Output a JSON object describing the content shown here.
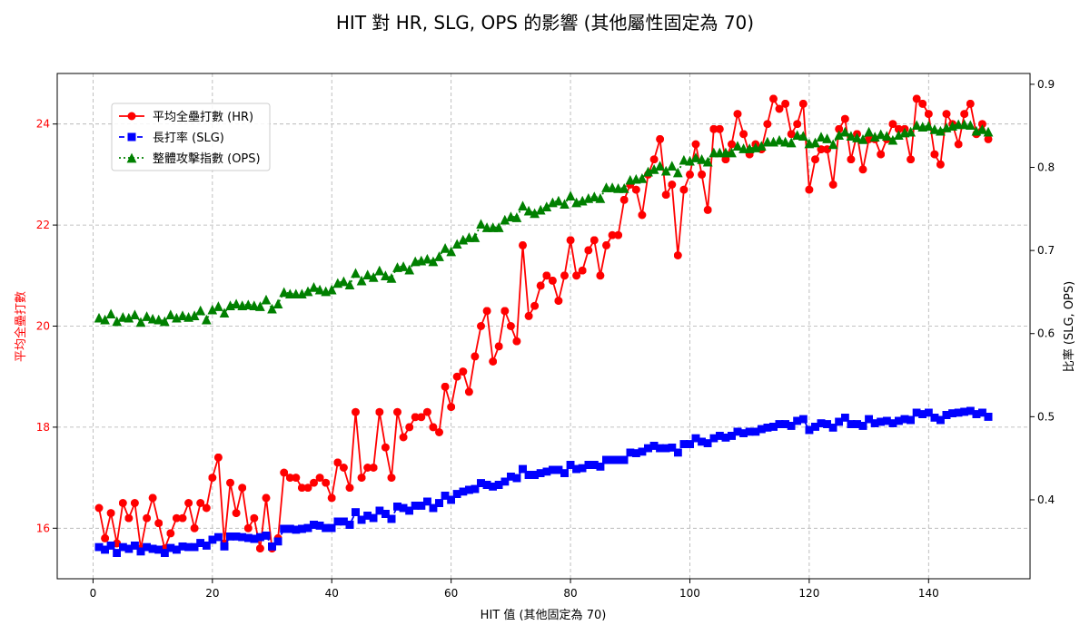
{
  "chart_data": {
    "type": "line",
    "title": "HIT 對 HR, SLG, OPS 的影響 (其他屬性固定為 70)",
    "xlabel": "HIT 值 (其他固定為 70)",
    "ylabel_left": "平均全壘打數",
    "ylabel_right": "比率 (SLG, OPS)",
    "xlim": [
      -6,
      157
    ],
    "ylim_left": [
      15.0,
      25.0
    ],
    "ylim_right": [
      0.305,
      0.913
    ],
    "x_ticks": [
      0,
      20,
      40,
      60,
      80,
      100,
      120,
      140
    ],
    "y_ticks_left": [
      16,
      18,
      20,
      22,
      24
    ],
    "y_ticks_right": [
      0.4,
      0.5,
      0.6,
      0.7,
      0.8,
      0.9
    ],
    "grid": true,
    "legend_position": "upper-left",
    "colors": {
      "hr": "#ff0000",
      "slg": "#0000ff",
      "ops": "#008000"
    },
    "x": [
      1,
      2,
      3,
      4,
      5,
      6,
      7,
      8,
      9,
      10,
      11,
      12,
      13,
      14,
      15,
      16,
      17,
      18,
      19,
      20,
      21,
      22,
      23,
      24,
      25,
      26,
      27,
      28,
      29,
      30,
      31,
      32,
      33,
      34,
      35,
      36,
      37,
      38,
      39,
      40,
      41,
      42,
      43,
      44,
      45,
      46,
      47,
      48,
      49,
      50,
      51,
      52,
      53,
      54,
      55,
      56,
      57,
      58,
      59,
      60,
      61,
      62,
      63,
      64,
      65,
      66,
      67,
      68,
      69,
      70,
      71,
      72,
      73,
      74,
      75,
      76,
      77,
      78,
      79,
      80,
      81,
      82,
      83,
      84,
      85,
      86,
      87,
      88,
      89,
      90,
      91,
      92,
      93,
      94,
      95,
      96,
      97,
      98,
      99,
      100,
      101,
      102,
      103,
      104,
      105,
      106,
      107,
      108,
      109,
      110,
      111,
      112,
      113,
      114,
      115,
      116,
      117,
      118,
      119,
      120,
      121,
      122,
      123,
      124,
      125,
      126,
      127,
      128,
      129,
      130,
      131,
      132,
      133,
      134,
      135,
      136,
      137,
      138,
      139,
      140,
      141,
      142,
      143,
      144,
      145,
      146,
      147,
      148,
      149,
      150
    ],
    "series": [
      {
        "name": "平均全壘打數 (HR)",
        "axis": "left",
        "style": "solid",
        "marker": "circle",
        "color": "#ff0000",
        "values": [
          16.4,
          15.8,
          16.3,
          15.7,
          16.5,
          16.2,
          16.5,
          15.6,
          16.2,
          16.6,
          16.1,
          15.6,
          15.9,
          16.2,
          16.2,
          16.5,
          16.0,
          16.5,
          16.4,
          17.0,
          17.4,
          15.7,
          16.9,
          16.3,
          16.8,
          16.0,
          16.2,
          15.6,
          16.6,
          15.6,
          15.8,
          17.1,
          17.0,
          17.0,
          16.8,
          16.8,
          16.9,
          17.0,
          16.9,
          16.6,
          17.3,
          17.2,
          16.8,
          18.3,
          17.0,
          17.2,
          17.2,
          18.3,
          17.6,
          17.0,
          18.3,
          17.8,
          18.0,
          18.2,
          18.2,
          18.3,
          18.0,
          17.9,
          18.8,
          18.4,
          19.0,
          19.1,
          18.7,
          19.4,
          20.0,
          20.3,
          19.3,
          19.6,
          20.3,
          20.0,
          19.7,
          21.6,
          20.2,
          20.4,
          20.8,
          21.0,
          20.9,
          20.5,
          21.0,
          21.7,
          21.0,
          21.1,
          21.5,
          21.7,
          21.0,
          21.6,
          21.8,
          21.8,
          22.5,
          22.8,
          22.7,
          22.2,
          23.0,
          23.3,
          23.7,
          22.6,
          22.8,
          21.4,
          22.7,
          23.0,
          23.6,
          23.0,
          22.3,
          23.9,
          23.9,
          23.3,
          23.6,
          24.2,
          23.8,
          23.4,
          23.6,
          23.5,
          24.0,
          24.5,
          24.3,
          24.4,
          23.8,
          24.0,
          24.4,
          22.7,
          23.3,
          23.5,
          23.5,
          22.8,
          23.9,
          24.1,
          23.3,
          23.8,
          23.1,
          23.7,
          23.7,
          23.4,
          23.7,
          24.0,
          23.9,
          23.9,
          23.3,
          24.5,
          24.4,
          24.2,
          23.4,
          23.2,
          24.2,
          24.0,
          23.6,
          24.2,
          24.4,
          23.8,
          24.0,
          23.7
        ]
      },
      {
        "name": "長打率 (SLG)",
        "axis": "right",
        "style": "dashed",
        "marker": "square",
        "color": "#0000ff",
        "values": [
          0.343,
          0.34,
          0.345,
          0.336,
          0.343,
          0.341,
          0.345,
          0.338,
          0.343,
          0.341,
          0.34,
          0.336,
          0.342,
          0.34,
          0.344,
          0.343,
          0.343,
          0.348,
          0.345,
          0.352,
          0.355,
          0.344,
          0.356,
          0.356,
          0.355,
          0.354,
          0.353,
          0.355,
          0.357,
          0.344,
          0.35,
          0.365,
          0.365,
          0.364,
          0.365,
          0.366,
          0.37,
          0.369,
          0.366,
          0.366,
          0.374,
          0.374,
          0.37,
          0.385,
          0.376,
          0.381,
          0.378,
          0.387,
          0.383,
          0.377,
          0.392,
          0.39,
          0.387,
          0.393,
          0.393,
          0.398,
          0.39,
          0.396,
          0.405,
          0.4,
          0.407,
          0.41,
          0.412,
          0.413,
          0.42,
          0.418,
          0.416,
          0.418,
          0.422,
          0.428,
          0.426,
          0.437,
          0.43,
          0.43,
          0.432,
          0.434,
          0.436,
          0.436,
          0.432,
          0.442,
          0.437,
          0.438,
          0.442,
          0.442,
          0.44,
          0.448,
          0.448,
          0.448,
          0.448,
          0.457,
          0.456,
          0.458,
          0.462,
          0.465,
          0.462,
          0.462,
          0.463,
          0.457,
          0.467,
          0.467,
          0.474,
          0.47,
          0.468,
          0.474,
          0.477,
          0.475,
          0.477,
          0.482,
          0.48,
          0.482,
          0.482,
          0.485,
          0.487,
          0.488,
          0.491,
          0.491,
          0.489,
          0.495,
          0.497,
          0.484,
          0.488,
          0.492,
          0.491,
          0.487,
          0.494,
          0.499,
          0.491,
          0.491,
          0.489,
          0.497,
          0.492,
          0.494,
          0.495,
          0.492,
          0.495,
          0.497,
          0.496,
          0.505,
          0.503,
          0.505,
          0.499,
          0.496,
          0.502,
          0.504,
          0.505,
          0.506,
          0.507,
          0.503,
          0.505,
          0.5
        ]
      },
      {
        "name": "整體攻擊指數 (OPS)",
        "axis": "right",
        "style": "dotted",
        "marker": "triangle",
        "color": "#008000",
        "values": [
          0.619,
          0.617,
          0.624,
          0.615,
          0.62,
          0.619,
          0.623,
          0.614,
          0.621,
          0.618,
          0.617,
          0.615,
          0.623,
          0.619,
          0.622,
          0.62,
          0.622,
          0.628,
          0.617,
          0.629,
          0.633,
          0.625,
          0.634,
          0.636,
          0.634,
          0.635,
          0.634,
          0.633,
          0.641,
          0.63,
          0.636,
          0.65,
          0.648,
          0.648,
          0.648,
          0.651,
          0.656,
          0.653,
          0.651,
          0.653,
          0.661,
          0.663,
          0.659,
          0.673,
          0.664,
          0.671,
          0.668,
          0.676,
          0.67,
          0.667,
          0.68,
          0.681,
          0.677,
          0.687,
          0.688,
          0.69,
          0.687,
          0.693,
          0.703,
          0.699,
          0.708,
          0.713,
          0.716,
          0.716,
          0.732,
          0.728,
          0.728,
          0.728,
          0.737,
          0.741,
          0.74,
          0.754,
          0.748,
          0.745,
          0.749,
          0.753,
          0.758,
          0.76,
          0.756,
          0.766,
          0.758,
          0.76,
          0.763,
          0.765,
          0.763,
          0.776,
          0.776,
          0.775,
          0.775,
          0.785,
          0.786,
          0.787,
          0.795,
          0.798,
          0.802,
          0.796,
          0.802,
          0.794,
          0.809,
          0.808,
          0.812,
          0.81,
          0.807,
          0.818,
          0.818,
          0.818,
          0.818,
          0.826,
          0.823,
          0.823,
          0.824,
          0.826,
          0.831,
          0.831,
          0.833,
          0.831,
          0.83,
          0.839,
          0.838,
          0.829,
          0.83,
          0.837,
          0.835,
          0.828,
          0.839,
          0.843,
          0.838,
          0.836,
          0.834,
          0.843,
          0.837,
          0.84,
          0.838,
          0.833,
          0.839,
          0.842,
          0.843,
          0.851,
          0.849,
          0.85,
          0.846,
          0.844,
          0.848,
          0.85,
          0.852,
          0.852,
          0.851,
          0.844,
          0.846,
          0.843
        ]
      }
    ]
  }
}
